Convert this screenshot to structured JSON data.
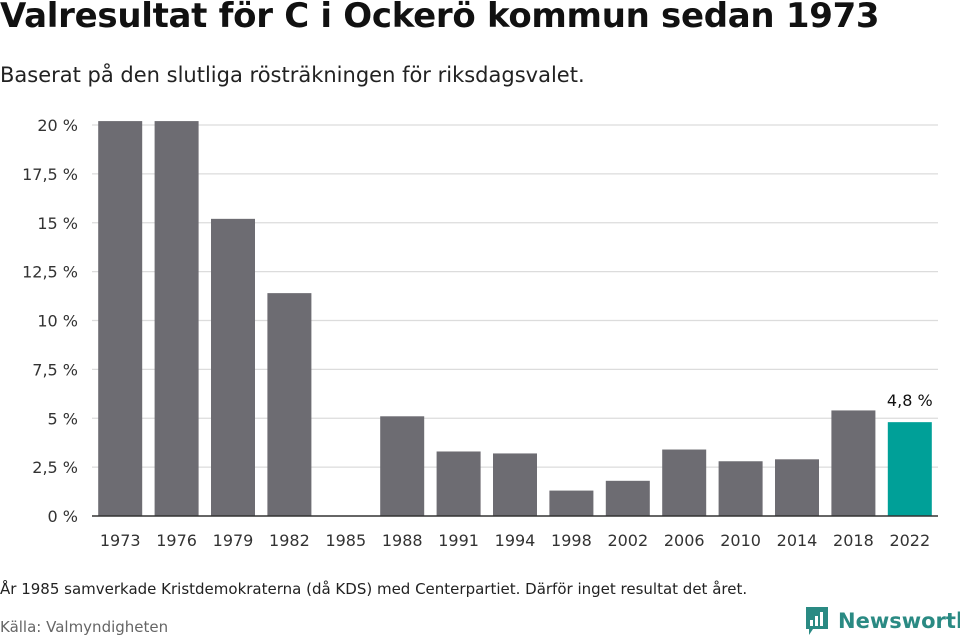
{
  "title": "Valresultat för C i Ockerö kommun sedan 1973",
  "subtitle": "Baserat på den slutliga rösträkningen för riksdagsvalet.",
  "note": "År 1985 samverkade Kristdemokraterna (då KDS) med Centerpartiet. Därför inget resultat det året.",
  "source": "Källa: Valmyndigheten",
  "brand": {
    "name": "Newsworthy",
    "icon": "newsworthy-logo-icon",
    "color": "#2a8a83"
  },
  "colors": {
    "bar": "#6d6c72",
    "highlight": "#00a098",
    "grid": "#dcdcdc",
    "axis": "#333333"
  },
  "chart_data": {
    "type": "bar",
    "title": "Valresultat för C i Ockerö kommun sedan 1973",
    "xlabel": "",
    "ylabel": "",
    "categories": [
      "1973",
      "1976",
      "1979",
      "1982",
      "1985",
      "1988",
      "1991",
      "1994",
      "1998",
      "2002",
      "2006",
      "2010",
      "2014",
      "2018",
      "2022"
    ],
    "values": [
      20.2,
      20.2,
      15.2,
      11.4,
      null,
      5.1,
      3.3,
      3.2,
      1.3,
      1.8,
      3.4,
      2.8,
      2.9,
      5.4,
      4.8
    ],
    "highlight_index": 14,
    "value_labels": [
      {
        "category": "2022",
        "text": "4,8 %"
      }
    ],
    "ylim": [
      0,
      20
    ],
    "yticks": [
      {
        "value": 0,
        "label": "0 %"
      },
      {
        "value": 2.5,
        "label": "2,5 %"
      },
      {
        "value": 5,
        "label": "5 %"
      },
      {
        "value": 7.5,
        "label": "7,5 %"
      },
      {
        "value": 10,
        "label": "10 %"
      },
      {
        "value": 12.5,
        "label": "12,5 %"
      },
      {
        "value": 15,
        "label": "15 %"
      },
      {
        "value": 17.5,
        "label": "17,5 %"
      },
      {
        "value": 20,
        "label": "20 %"
      }
    ],
    "grid": true
  }
}
